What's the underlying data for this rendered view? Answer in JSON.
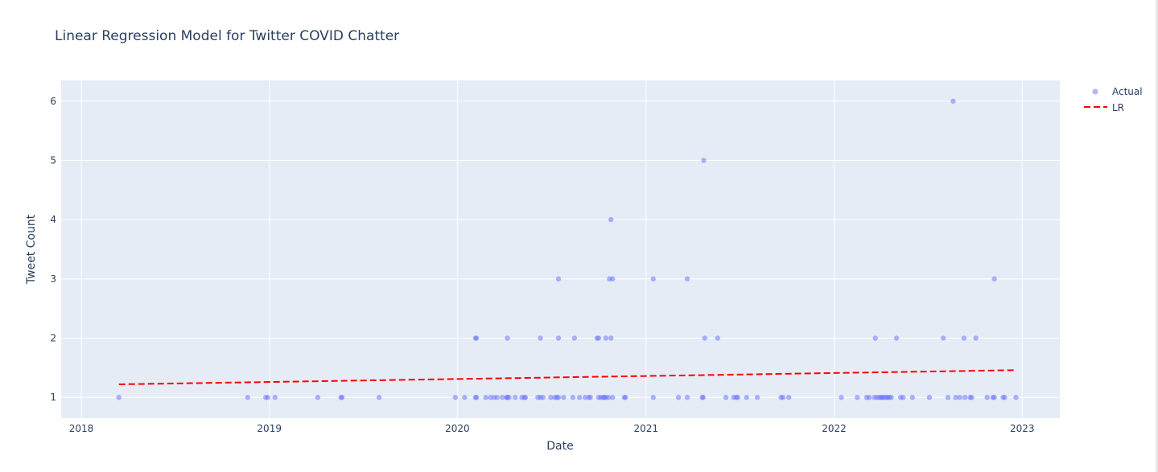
{
  "chart_data": {
    "type": "scatter",
    "title": "Linear Regression Model for Twitter COVID Chatter",
    "xlabel": "Date",
    "ylabel": "Tweet Count",
    "x_type": "date",
    "xlim": [
      "2017-11-23",
      "2023-03-15"
    ],
    "ylim": [
      0.65,
      6.35
    ],
    "x_ticks": [
      "2018",
      "2019",
      "2020",
      "2021",
      "2022",
      "2023"
    ],
    "y_ticks": [
      1,
      2,
      3,
      4,
      5,
      6
    ],
    "grid": true,
    "legend": {
      "placement": "top-right"
    },
    "colors": {
      "plot_bg": "#e5ecf6",
      "actual": "#636efa",
      "lr": "#ff0000"
    },
    "series": [
      {
        "name": "Actual",
        "mode": "markers",
        "x": [
          "2018-03-15",
          "2018-11-20",
          "2018-12-25",
          "2018-12-29",
          "2019-01-12",
          "2019-04-05",
          "2019-05-20",
          "2019-05-22",
          "2019-08-02",
          "2019-12-28",
          "2020-01-15",
          "2020-02-05",
          "2020-02-07",
          "2020-02-25",
          "2020-03-05",
          "2020-03-12",
          "2020-03-18",
          "2020-03-28",
          "2020-04-05",
          "2020-04-07",
          "2020-04-10",
          "2020-04-22",
          "2020-05-05",
          "2020-05-10",
          "2020-05-12",
          "2020-06-05",
          "2020-06-10",
          "2020-06-15",
          "2020-06-30",
          "2020-07-08",
          "2020-07-12",
          "2020-07-15",
          "2020-07-25",
          "2020-08-12",
          "2020-08-25",
          "2020-09-05",
          "2020-09-12",
          "2020-09-15",
          "2020-10-01",
          "2020-10-05",
          "2020-10-10",
          "2020-10-12",
          "2020-10-15",
          "2020-10-20",
          "2020-10-28",
          "2020-11-20",
          "2020-11-22",
          "2021-01-15",
          "2021-03-05",
          "2021-03-22",
          "2021-04-20",
          "2021-04-22",
          "2021-06-05",
          "2021-06-20",
          "2021-06-25",
          "2021-06-28",
          "2021-07-15",
          "2021-08-05",
          "2021-09-20",
          "2021-09-24",
          "2021-10-05",
          "2022-01-15",
          "2022-02-15",
          "2022-03-05",
          "2022-03-10",
          "2022-03-20",
          "2022-03-25",
          "2022-03-30",
          "2022-04-02",
          "2022-04-05",
          "2022-04-08",
          "2022-04-12",
          "2022-04-15",
          "2022-04-18",
          "2022-04-22",
          "2022-05-10",
          "2022-05-15",
          "2022-06-02",
          "2022-07-05",
          "2022-08-10",
          "2022-08-25",
          "2022-09-02",
          "2022-09-12",
          "2022-09-22",
          "2022-09-25",
          "2022-10-25",
          "2022-11-05",
          "2022-11-08",
          "2022-11-25",
          "2022-11-28",
          "2022-12-20",
          "2020-02-05",
          "2020-02-07",
          "2020-04-07",
          "2020-06-10",
          "2020-07-15",
          "2020-08-15",
          "2020-09-28",
          "2020-10-01",
          "2020-10-15",
          "2020-10-25",
          "2021-04-25",
          "2021-05-20",
          "2022-03-22",
          "2022-05-02",
          "2022-08-01",
          "2022-09-10",
          "2022-10-03",
          "2020-07-15",
          "2020-10-22",
          "2020-10-28",
          "2021-01-15",
          "2021-03-22",
          "2022-11-08",
          "2020-10-25",
          "2021-04-23",
          "2022-08-20"
        ],
        "y": [
          1,
          1,
          1,
          1,
          1,
          1,
          1,
          1,
          1,
          1,
          1,
          1,
          1,
          1,
          1,
          1,
          1,
          1,
          1,
          1,
          1,
          1,
          1,
          1,
          1,
          1,
          1,
          1,
          1,
          1,
          1,
          1,
          1,
          1,
          1,
          1,
          1,
          1,
          1,
          1,
          1,
          1,
          1,
          1,
          1,
          1,
          1,
          1,
          1,
          1,
          1,
          1,
          1,
          1,
          1,
          1,
          1,
          1,
          1,
          1,
          1,
          1,
          1,
          1,
          1,
          1,
          1,
          1,
          1,
          1,
          1,
          1,
          1,
          1,
          1,
          1,
          1,
          1,
          1,
          1,
          1,
          1,
          1,
          1,
          1,
          1,
          1,
          1,
          1,
          1,
          1,
          2,
          2,
          2,
          2,
          2,
          2,
          2,
          2,
          2,
          2,
          2,
          2,
          2,
          2,
          2,
          2,
          2,
          3,
          3,
          3,
          3,
          3,
          3,
          4,
          5,
          6
        ]
      },
      {
        "name": "LR",
        "mode": "lines",
        "dash": "dash",
        "x": [
          "2018-03-15",
          "2022-12-20"
        ],
        "y": [
          1.22,
          1.46
        ]
      }
    ]
  }
}
